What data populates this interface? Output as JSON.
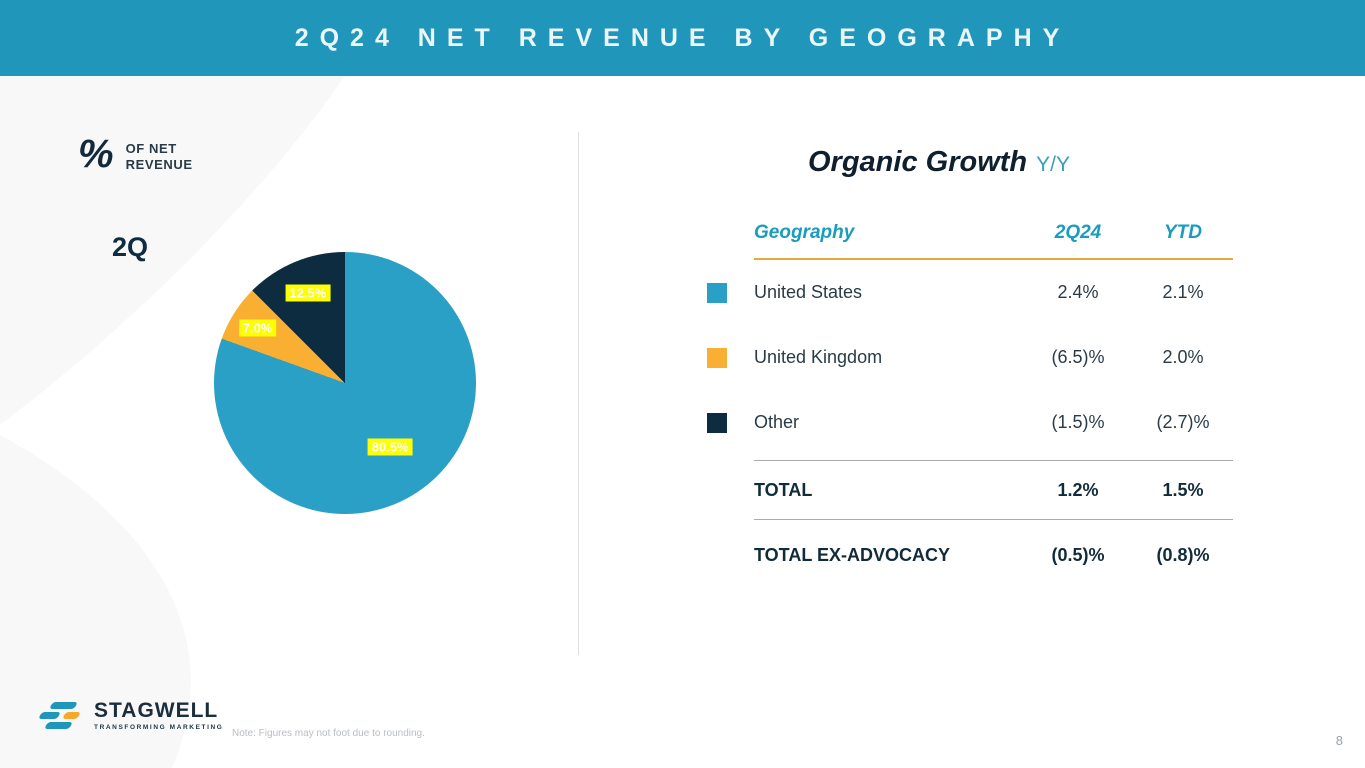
{
  "header": {
    "title": "2Q24 NET REVENUE BY GEOGRAPHY"
  },
  "left_panel": {
    "pct_symbol": "%",
    "pct_caption_line1": "OF NET",
    "pct_caption_line2": "REVENUE",
    "quarter_label": "2Q"
  },
  "chart_data": [
    {
      "type": "pie",
      "title": "2Q % of Net Revenue",
      "start_angle_deg": 0,
      "direction": "clockwise",
      "label_highlight_color": "#FDFF00",
      "slices": [
        {
          "label": "United States",
          "value": 80.5,
          "display": "80.5%",
          "color": "#2BA0C6",
          "label_r": 0.6
        },
        {
          "label": "United Kingdom",
          "value": 7.0,
          "display": "7.0%",
          "color": "#F9AF32",
          "label_r": 0.79
        },
        {
          "label": "Other",
          "value": 12.5,
          "display": "12.5%",
          "color": "#0D2C3F",
          "label_r": 0.74
        }
      ]
    },
    {
      "type": "table",
      "title_main": "Organic Growth",
      "title_suffix": "Y/Y",
      "columns": [
        "Geography",
        "2Q24",
        "YTD"
      ],
      "rows": [
        [
          "United States",
          "2.4%",
          "2.1%"
        ],
        [
          "United Kingdom",
          "(6.5)%",
          "2.0%"
        ],
        [
          "Other",
          "(1.5)%",
          "(2.7)%"
        ]
      ],
      "totals": [
        [
          "TOTAL",
          "1.2%",
          "1.5%"
        ],
        [
          "TOTAL EX-ADVOCACY",
          "(0.5)%",
          "(0.8)%"
        ]
      ]
    }
  ],
  "footer": {
    "brand": "STAGWELL",
    "brand_tagline": "TRANSFORMING MARKETING",
    "note": "Note: Figures may not foot due to rounding.",
    "page_number": "8"
  },
  "colors": {
    "header_bg": "#2196BB",
    "accent_teal": "#1A9CBD",
    "navy": "#0D2C3F",
    "gold_rule": "#DFAC3F"
  }
}
